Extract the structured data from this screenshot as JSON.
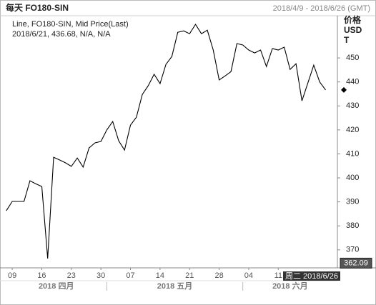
{
  "chart_data": {
    "type": "line",
    "title": "每天 FO180-SIN",
    "date_range": "2018/4/9 - 2018/6/26 (GMT)",
    "y_label_lines": [
      "价格",
      "USD",
      "T"
    ],
    "legend_detail": "2018/6/21, 436.68, N/A, N/A",
    "x": [
      "2018/4/6",
      "2018/4/9",
      "2018/4/10",
      "2018/4/11",
      "2018/4/12",
      "2018/4/13",
      "2018/4/16",
      "2018/4/17",
      "2018/4/18",
      "2018/4/19",
      "2018/4/20",
      "2018/4/23",
      "2018/4/24",
      "2018/4/25",
      "2018/4/26",
      "2018/4/27",
      "2018/4/30",
      "2018/5/1",
      "2018/5/2",
      "2018/5/3",
      "2018/5/4",
      "2018/5/7",
      "2018/5/8",
      "2018/5/9",
      "2018/5/10",
      "2018/5/11",
      "2018/5/14",
      "2018/5/15",
      "2018/5/16",
      "2018/5/17",
      "2018/5/18",
      "2018/5/21",
      "2018/5/22",
      "2018/5/23",
      "2018/5/24",
      "2018/5/25",
      "2018/5/28",
      "2018/5/29",
      "2018/5/30",
      "2018/5/31",
      "2018/6/1",
      "2018/6/4",
      "2018/6/5",
      "2018/6/6",
      "2018/6/7",
      "2018/6/8",
      "2018/6/11",
      "2018/6/12",
      "2018/6/13",
      "2018/6/14",
      "2018/6/15",
      "2018/6/18",
      "2018/6/19",
      "2018/6/20",
      "2018/6/21"
    ],
    "series": [
      {
        "name": "Line, FO180-SIN, Mid Price(Last)",
        "color": "#000000",
        "values": [
          386.3,
          390.2,
          390.2,
          390.2,
          398.8,
          397.5,
          396.4,
          366.4,
          408.6,
          407.5,
          406.3,
          404.8,
          408.3,
          404.5,
          412.5,
          414.6,
          415.2,
          420,
          423.5,
          415.5,
          411.6,
          422.0,
          425.3,
          434.8,
          438.4,
          443.2,
          439.3,
          447.3,
          450.6,
          460.7,
          461.3,
          460.1,
          464.0,
          460.1,
          461.6,
          453.3,
          440.8,
          442.5,
          444.3,
          456.0,
          455.4,
          453.3,
          452.1,
          453.3,
          446.4,
          453.9,
          453.3,
          454.5,
          445.2,
          447.6,
          432.1,
          439.5,
          447.0,
          440,
          436.68
        ]
      }
    ],
    "xlim": [
      "2018/4/6",
      "2018/6/25"
    ],
    "xticks": [
      {
        "value": "2018/4/9",
        "label": "09"
      },
      {
        "value": "2018/4/16",
        "label": "16"
      },
      {
        "value": "2018/4/23",
        "label": "23"
      },
      {
        "value": "2018/4/30",
        "label": "30"
      },
      {
        "value": "2018/5/7",
        "label": "07"
      },
      {
        "value": "2018/5/14",
        "label": "14"
      },
      {
        "value": "2018/5/21",
        "label": "21"
      },
      {
        "value": "2018/5/28",
        "label": "28"
      },
      {
        "value": "2018/6/4",
        "label": "04"
      },
      {
        "value": "2018/6/11",
        "label": "11"
      }
    ],
    "months": [
      {
        "value": "2018/4/1",
        "label": "2018 四月"
      },
      {
        "value": "2018/5/1",
        "label": "2018 五月"
      },
      {
        "value": "2018/6/1",
        "label": "2018 六月"
      }
    ],
    "ylim": [
      362.5,
      467.6
    ],
    "yticks": [
      370,
      380,
      390,
      400,
      410,
      420,
      430,
      440,
      450
    ],
    "crosshair": {
      "value": 362.09,
      "date_label": "周二 2018/6/26"
    },
    "grid": false
  }
}
